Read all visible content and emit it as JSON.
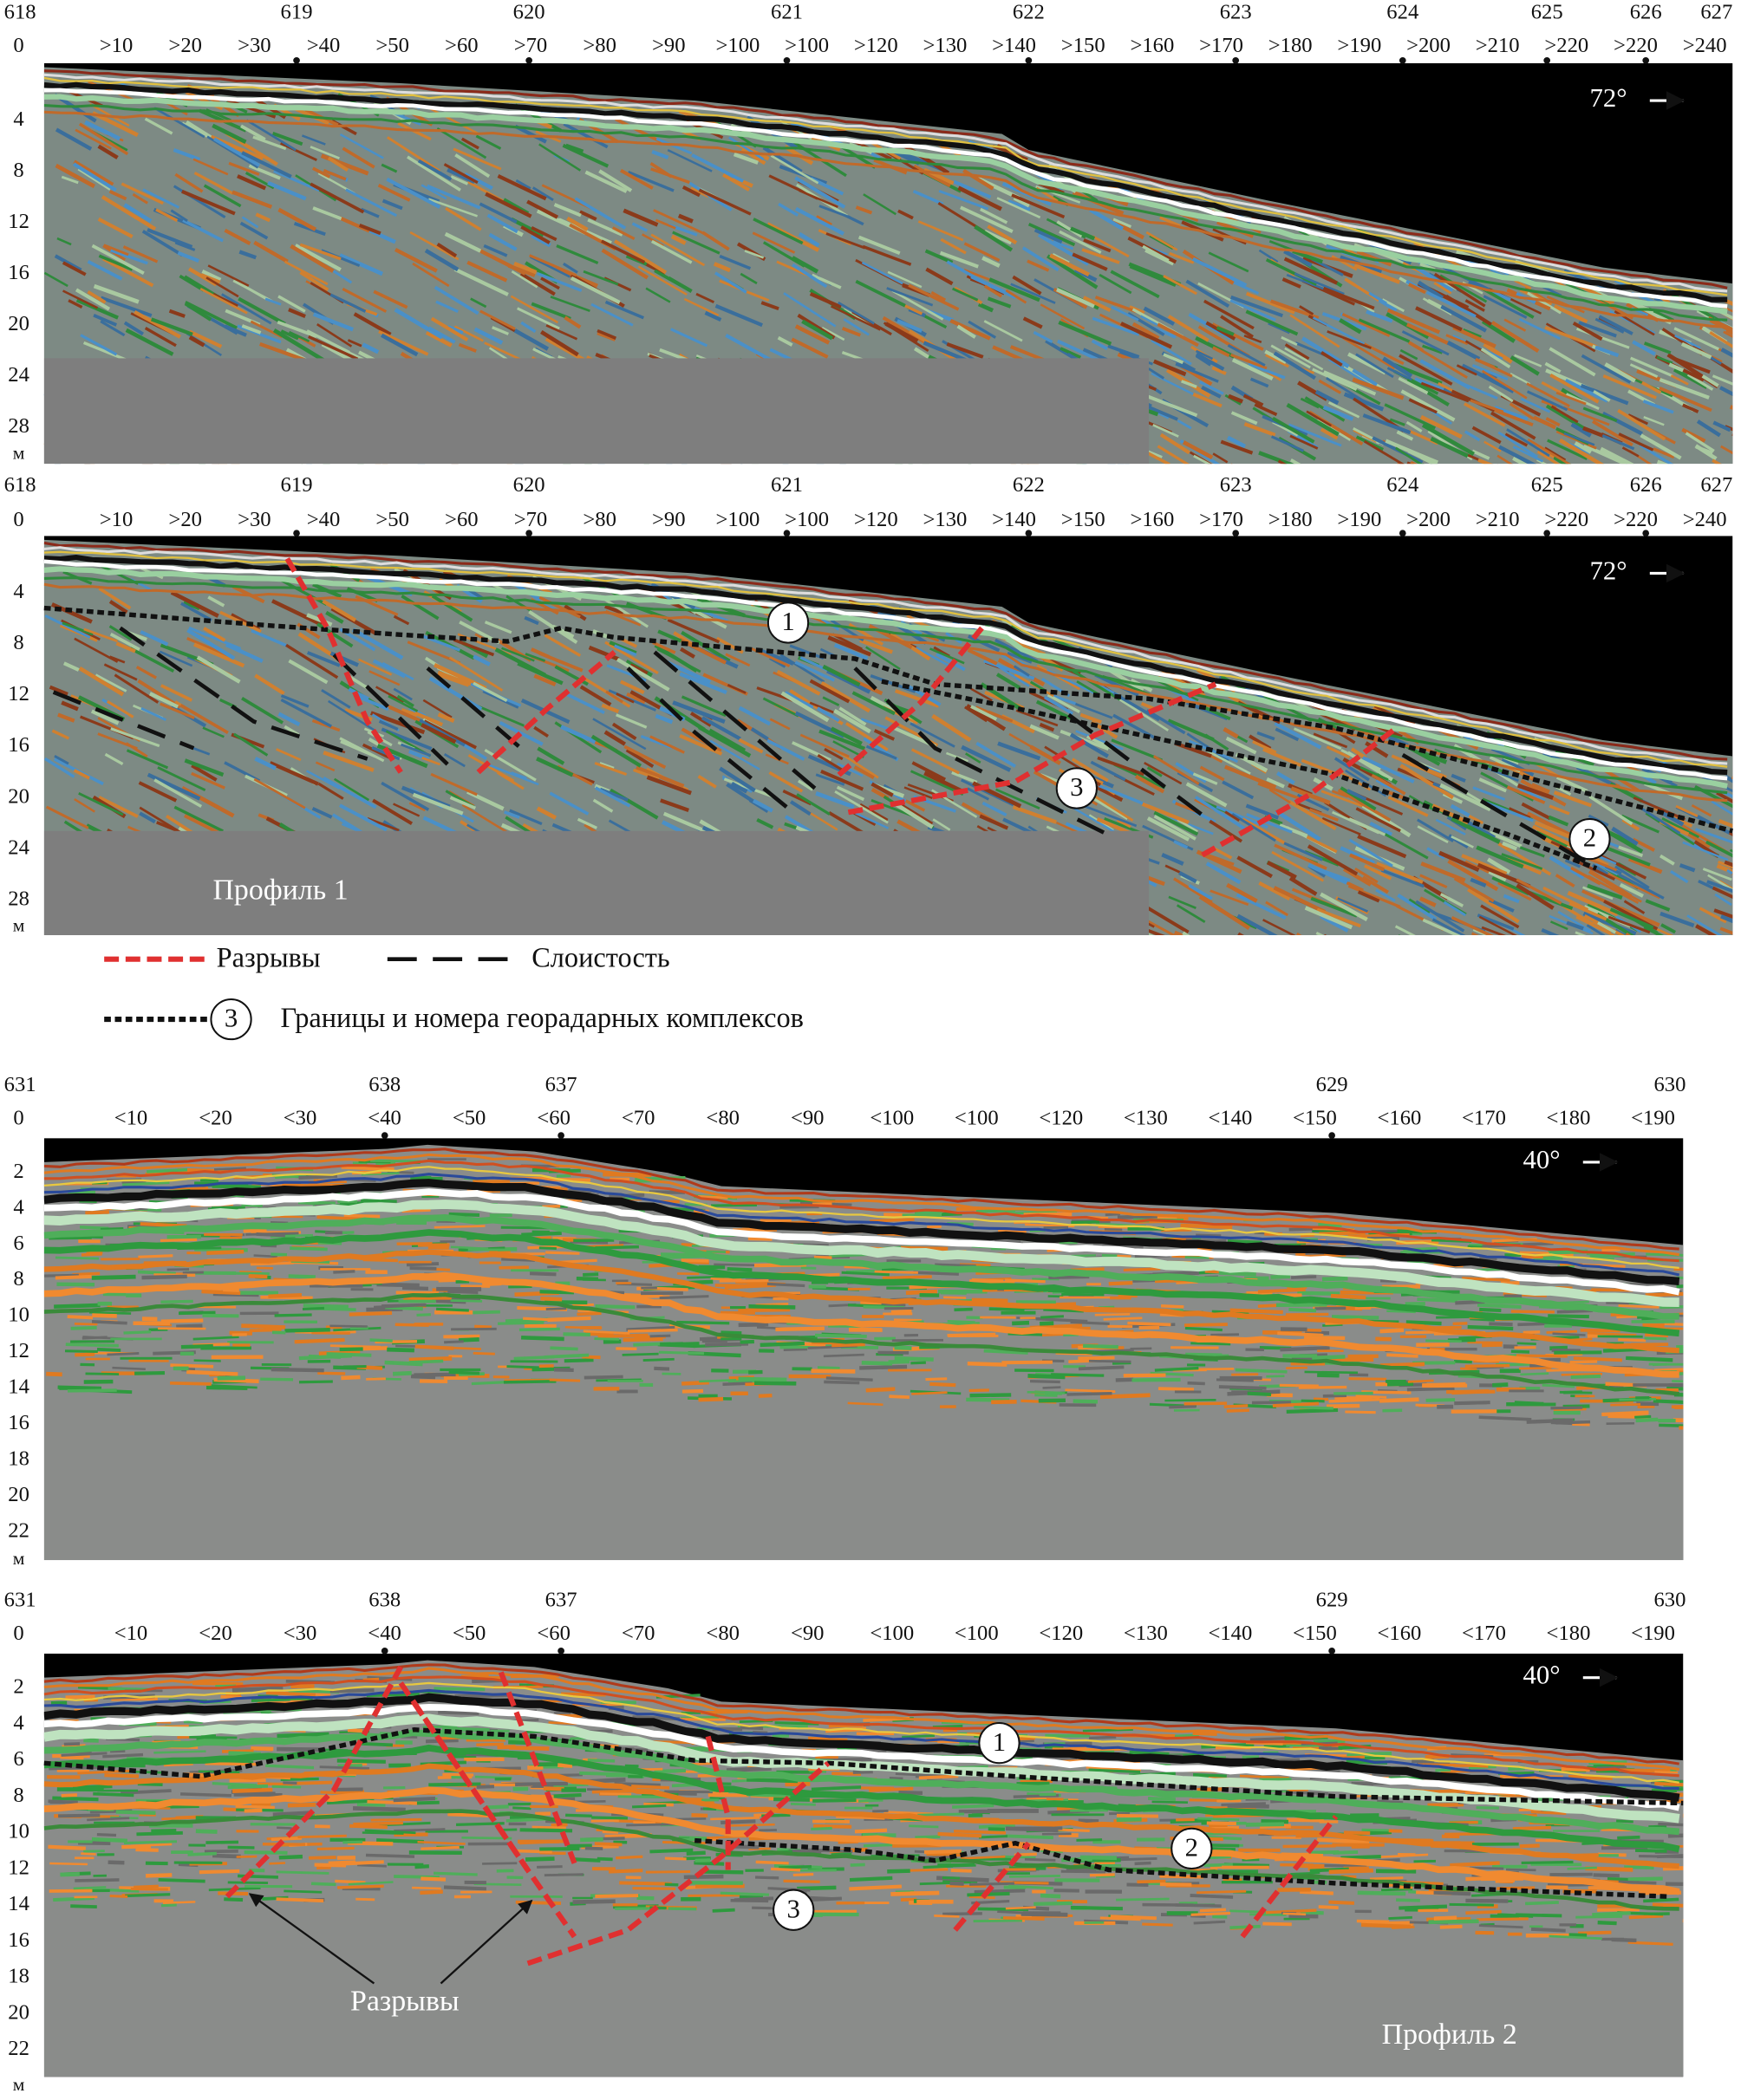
{
  "panels": [
    {
      "pickets": [
        "618",
        "619",
        "620",
        "621",
        "622",
        "623",
        "624",
        "625",
        "626",
        "627"
      ],
      "distances": [
        "0",
        ">10",
        ">20",
        ">30",
        ">40",
        ">50",
        ">60",
        ">70",
        ">80",
        ">90",
        ">100",
        ">100",
        ">120",
        ">130",
        ">140",
        ">150",
        ">160",
        ">170",
        ">180",
        ">190",
        ">200",
        ">210",
        ">220",
        ">220",
        ">240"
      ],
      "depths": [
        "4",
        "8",
        "12",
        "16",
        "20",
        "24",
        "28"
      ],
      "depth_unit": "м",
      "direction": "72°"
    },
    {
      "pickets": [
        "618",
        "619",
        "620",
        "621",
        "622",
        "623",
        "624",
        "625",
        "626",
        "627"
      ],
      "distances": [
        "0",
        ">10",
        ">20",
        ">30",
        ">40",
        ">50",
        ">60",
        ">70",
        ">80",
        ">90",
        ">100",
        ">100",
        ">120",
        ">130",
        ">140",
        ">150",
        ">160",
        ">170",
        ">180",
        ">190",
        ">200",
        ">210",
        ">220",
        ">220",
        ">240"
      ],
      "depths": [
        "4",
        "8",
        "12",
        "16",
        "20",
        "24",
        "28"
      ],
      "depth_unit": "м",
      "direction": "72°",
      "complexes": [
        "1",
        "3",
        "2"
      ],
      "profile_label": "Профиль 1"
    },
    {
      "pickets": [
        "631",
        "638",
        "637",
        "629",
        "630"
      ],
      "distances": [
        "0",
        "<10",
        "<20",
        "<30",
        "<40",
        "<50",
        "<60",
        "<70",
        "<80",
        "<90",
        "<100",
        "<100",
        "<120",
        "<130",
        "<140",
        "<150",
        "<160",
        "<170",
        "<180",
        "<190"
      ],
      "depths": [
        "2",
        "4",
        "6",
        "8",
        "10",
        "12",
        "14",
        "16",
        "18",
        "20",
        "22"
      ],
      "depth_unit": "м",
      "direction": "40°"
    },
    {
      "pickets": [
        "631",
        "638",
        "637",
        "629",
        "630"
      ],
      "distances": [
        "0",
        "<10",
        "<20",
        "<30",
        "<40",
        "<50",
        "<60",
        "<70",
        "<80",
        "<90",
        "<100",
        "<100",
        "<120",
        "<130",
        "<140",
        "<150",
        "<160",
        "<170",
        "<180",
        "<190"
      ],
      "depths": [
        "2",
        "4",
        "6",
        "8",
        "10",
        "12",
        "14",
        "16",
        "18",
        "20",
        "22"
      ],
      "depth_unit": "м",
      "direction": "40°",
      "complexes": [
        "1",
        "2",
        "3"
      ],
      "fault_label": "Разрывы",
      "profile_label": "Профиль 2"
    }
  ],
  "legend": {
    "faults": "Разрывы",
    "bedding": "Слоистость",
    "marker": "3",
    "boundaries": "Границы и номера георадарных комплексов"
  }
}
